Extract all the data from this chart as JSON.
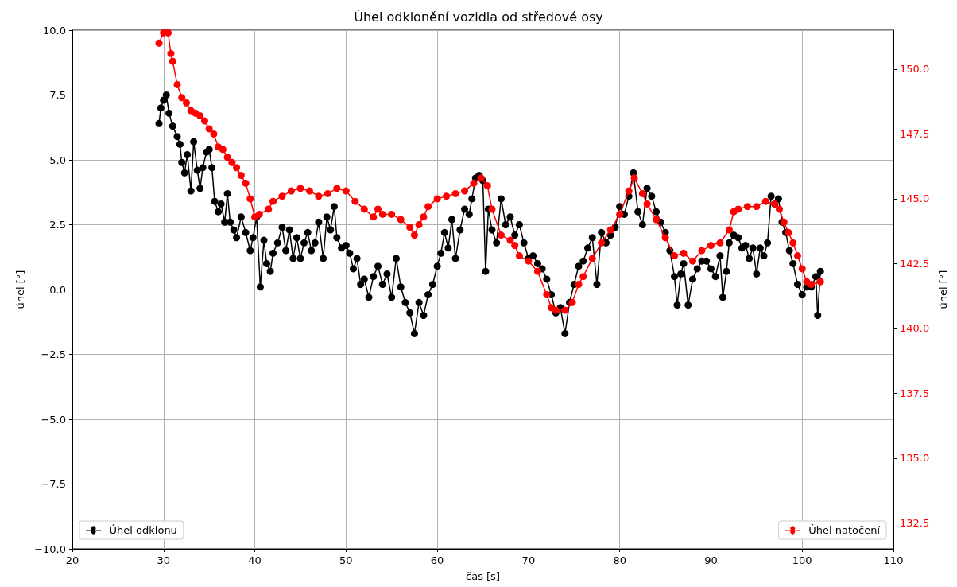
{
  "chart_data": {
    "type": "line",
    "title": "Úhel odklonění vozidla od středové osy",
    "xlabel": "čas [s]",
    "ylabel": "úhel [°]",
    "y2label": "úhel [°]",
    "xlim": [
      20,
      110
    ],
    "xticks": [
      20,
      30,
      40,
      50,
      60,
      70,
      80,
      90,
      100,
      110
    ],
    "ylim": [
      -10,
      10
    ],
    "yticks": [
      {
        "value": -10,
        "label": "−10.0"
      },
      {
        "value": -7.5,
        "label": "−7.5"
      },
      {
        "value": -5,
        "label": "−5.0"
      },
      {
        "value": -2.5,
        "label": "−2.5"
      },
      {
        "value": 0,
        "label": "0.0"
      },
      {
        "value": 2.5,
        "label": "2.5"
      },
      {
        "value": 5,
        "label": "5.0"
      },
      {
        "value": 7.5,
        "label": "7.5"
      },
      {
        "value": 10,
        "label": "10.0"
      }
    ],
    "y2lim": [
      131.5,
      151.5
    ],
    "y2ticks": [
      132.5,
      {
        "value": 135,
        "label": "135.0"
      },
      137.5,
      {
        "value": 140,
        "label": "140.0"
      },
      142.5,
      {
        "value": 145,
        "label": "145.0"
      },
      147.5,
      {
        "value": 150,
        "label": "150.0"
      }
    ],
    "grid": true,
    "legend": "bottom left",
    "marker": "circle",
    "line_style": "solid",
    "series": [
      {
        "name": "Úhel odklonu",
        "color": "#000000",
        "x": [
          29.5,
          29.7,
          30.0,
          30.3,
          30.6,
          31.0,
          31.5,
          31.8,
          32.0,
          32.3,
          32.6,
          33.0,
          33.3,
          33.7,
          34.0,
          34.3,
          34.7,
          35.0,
          35.3,
          35.6,
          36.0,
          36.3,
          36.7,
          37.0,
          37.3,
          37.7,
          38.0,
          38.5,
          39.0,
          39.5,
          39.8,
          40.2,
          40.6,
          41.0,
          41.3,
          41.7,
          42.0,
          42.5,
          43.0,
          43.4,
          43.8,
          44.2,
          44.6,
          45.0,
          45.4,
          45.8,
          46.2,
          46.6,
          47.0,
          47.5,
          47.9,
          48.3,
          48.7,
          49.0,
          49.5,
          50.0,
          50.4,
          50.8,
          51.2,
          51.6,
          52.0,
          52.5,
          53.0,
          53.5,
          54.0,
          54.5,
          55.0,
          55.5,
          56.0,
          56.5,
          57.0,
          57.5,
          58.0,
          58.5,
          59.0,
          59.5,
          60.0,
          60.4,
          60.8,
          61.2,
          61.6,
          62.0,
          62.5,
          63.0,
          63.5,
          63.8,
          64.2,
          64.6,
          65.0,
          65.3,
          65.6,
          66.0,
          66.5,
          67.0,
          67.5,
          68.0,
          68.5,
          69.0,
          69.5,
          70.0,
          70.5,
          71.0,
          71.5,
          72.0,
          72.5,
          73.0,
          73.5,
          74.0,
          74.5,
          75.0,
          75.5,
          76.0,
          76.5,
          77.0,
          77.5,
          78.0,
          78.5,
          79.0,
          79.5,
          80.0,
          80.5,
          81.0,
          81.5,
          82.0,
          82.5,
          83.0,
          83.5,
          84.0,
          84.5,
          85.0,
          85.5,
          86.0,
          86.3,
          86.7,
          87.0,
          87.5,
          88.0,
          88.5,
          89.0,
          89.5,
          90.0,
          90.5,
          91.0,
          91.3,
          91.7,
          92.0,
          92.5,
          93.0,
          93.4,
          93.8,
          94.2,
          94.6,
          95.0,
          95.4,
          95.8,
          96.2,
          96.6,
          97.0,
          97.4,
          97.8,
          98.2,
          98.6,
          99.0,
          99.5,
          100.0,
          100.5,
          101.0,
          101.5,
          101.7,
          102.0
        ],
        "values": [
          6.4,
          7.0,
          7.3,
          7.5,
          6.8,
          6.3,
          5.9,
          5.6,
          4.9,
          4.5,
          5.2,
          3.8,
          5.7,
          4.6,
          3.9,
          4.7,
          5.3,
          5.4,
          4.7,
          3.4,
          3.0,
          3.3,
          2.6,
          3.7,
          2.6,
          2.3,
          2.0,
          2.8,
          2.2,
          1.5,
          2.0,
          2.8,
          0.1,
          1.9,
          1.0,
          0.7,
          1.4,
          1.8,
          2.4,
          1.5,
          2.3,
          1.2,
          2.0,
          1.2,
          1.8,
          2.2,
          1.5,
          1.8,
          2.6,
          1.2,
          2.8,
          2.3,
          3.2,
          2.0,
          1.6,
          1.7,
          1.4,
          0.8,
          1.2,
          0.2,
          0.4,
          -0.3,
          0.5,
          0.9,
          0.2,
          0.6,
          -0.3,
          1.2,
          0.1,
          -0.5,
          -0.9,
          -1.7,
          -0.5,
          -1.0,
          -0.2,
          0.2,
          0.9,
          1.4,
          2.2,
          1.6,
          2.7,
          1.2,
          2.3,
          3.1,
          2.9,
          3.5,
          4.3,
          4.4,
          4.2,
          0.7,
          3.1,
          2.3,
          1.8,
          3.5,
          2.5,
          2.8,
          2.1,
          2.5,
          1.8,
          1.2,
          1.3,
          1.0,
          0.8,
          0.4,
          -0.2,
          -0.9,
          -0.7,
          -1.7,
          -0.5,
          0.2,
          0.9,
          1.1,
          1.6,
          2.0,
          0.2,
          2.2,
          1.8,
          2.1,
          2.4,
          3.2,
          2.9,
          3.6,
          4.5,
          3.0,
          2.5,
          3.9,
          3.6,
          3.0,
          2.6,
          2.2,
          1.5,
          0.5,
          -0.6,
          0.6,
          1.0,
          -0.6,
          0.4,
          0.8,
          1.1,
          1.1,
          0.8,
          0.5,
          1.3,
          -0.3,
          0.7,
          1.8,
          2.1,
          2.0,
          1.6,
          1.7,
          1.2,
          1.6,
          0.6,
          1.6,
          1.3,
          1.8,
          3.6,
          3.3,
          3.5,
          2.6,
          2.2,
          1.5,
          1.0,
          0.2,
          -0.2,
          0.1,
          0.1,
          0.5,
          -1.0,
          0.7
        ]
      },
      {
        "name": "Úhel natočení",
        "color": "#ff0000",
        "axis": "y2",
        "x": [
          29.5,
          30.0,
          30.5,
          30.8,
          31.0,
          31.5,
          32.0,
          32.5,
          33.0,
          33.5,
          34.0,
          34.5,
          35.0,
          35.5,
          36.0,
          36.5,
          37.0,
          37.5,
          38.0,
          38.5,
          39.0,
          39.5,
          40.0,
          40.5,
          41.5,
          42.0,
          43.0,
          44.0,
          45.0,
          46.0,
          47.0,
          48.0,
          49.0,
          50.0,
          51.0,
          52.0,
          53.0,
          53.5,
          54.0,
          55.0,
          56.0,
          57.0,
          57.5,
          58.0,
          58.5,
          59.0,
          60.0,
          61.0,
          62.0,
          63.0,
          64.0,
          64.8,
          65.5,
          66.0,
          67.0,
          68.0,
          68.5,
          69.0,
          70.0,
          71.0,
          72.0,
          72.5,
          73.0,
          74.0,
          74.8,
          75.5,
          76.0,
          77.0,
          78.0,
          79.0,
          80.0,
          81.0,
          81.6,
          82.5,
          83.0,
          84.0,
          85.0,
          86.0,
          87.0,
          88.0,
          89.0,
          90.0,
          91.0,
          92.0,
          92.5,
          93.0,
          94.0,
          95.0,
          96.0,
          97.0,
          97.5,
          98.0,
          98.5,
          99.0,
          99.5,
          100.0,
          100.5,
          101.0,
          102.0
        ],
        "values": [
          151.0,
          151.4,
          151.4,
          150.6,
          150.3,
          149.4,
          148.9,
          148.7,
          148.4,
          148.3,
          148.2,
          148.0,
          147.7,
          147.5,
          147.0,
          146.9,
          146.6,
          146.4,
          146.2,
          145.9,
          145.6,
          145.0,
          144.3,
          144.4,
          144.6,
          144.9,
          145.1,
          145.3,
          145.4,
          145.3,
          145.1,
          145.2,
          145.4,
          145.3,
          144.9,
          144.6,
          144.3,
          144.6,
          144.4,
          144.4,
          144.2,
          143.9,
          143.6,
          144.0,
          144.3,
          144.7,
          145.0,
          145.1,
          145.2,
          145.3,
          145.6,
          145.8,
          145.5,
          144.6,
          143.6,
          143.4,
          143.2,
          142.8,
          142.6,
          142.2,
          141.3,
          140.8,
          140.7,
          140.7,
          141.0,
          141.7,
          142.0,
          142.7,
          143.3,
          143.8,
          144.4,
          145.3,
          145.8,
          145.2,
          144.8,
          144.2,
          143.5,
          142.8,
          142.9,
          142.6,
          143.0,
          143.2,
          143.3,
          143.8,
          144.5,
          144.6,
          144.7,
          144.7,
          144.9,
          144.8,
          144.6,
          144.1,
          143.7,
          143.3,
          142.8,
          142.3,
          141.8,
          141.7,
          141.8
        ]
      }
    ]
  }
}
